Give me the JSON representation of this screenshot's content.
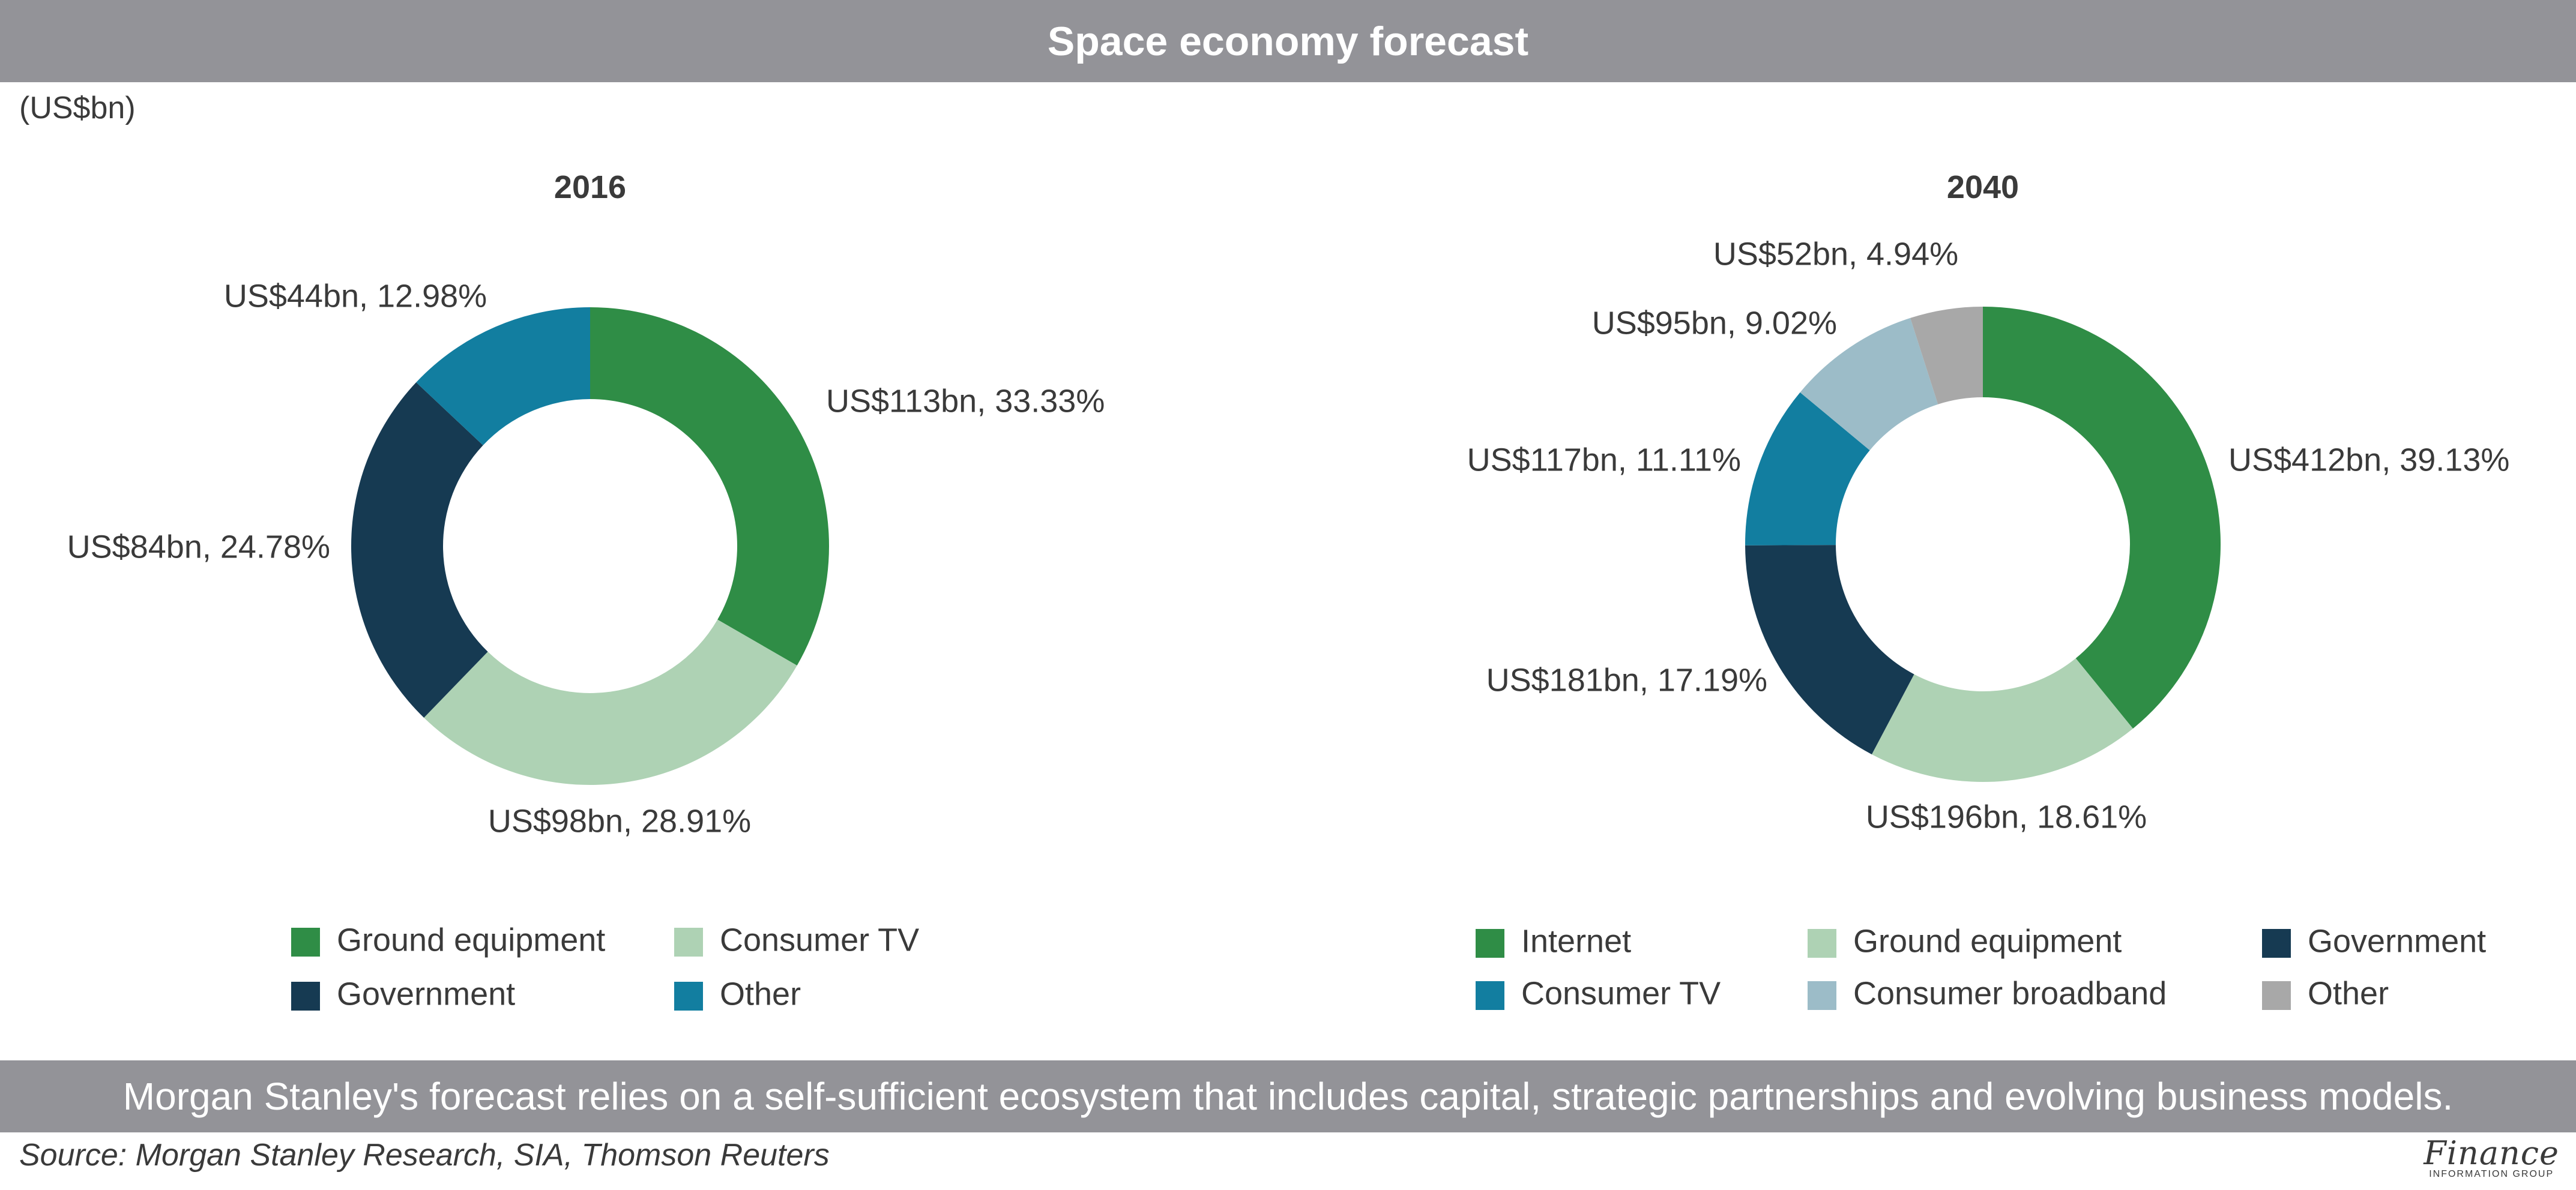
{
  "header": {
    "title": "Space economy forecast"
  },
  "unit_label": "(US$bn)",
  "chart_data": [
    {
      "type": "pie",
      "title": "2016",
      "categories": [
        "Ground equipment",
        "Consumer TV",
        "Government",
        "Other"
      ],
      "values": [
        113,
        98,
        84,
        44
      ],
      "percents": [
        33.33,
        28.91,
        24.78,
        12.98
      ],
      "labels": [
        "US$113bn, 33.33%",
        "US$98bn, 28.91%",
        "US$84bn, 24.78%",
        "US$44bn, 12.98%"
      ],
      "colors": [
        "#2f8d46",
        "#aed2b4",
        "#163a52",
        "#127ea0"
      ],
      "legend": [
        "Ground equipment",
        "Consumer TV",
        "Government",
        "Other"
      ],
      "legend_colors": [
        "#2f8d46",
        "#aed2b4",
        "#163a52",
        "#127ea0"
      ]
    },
    {
      "type": "pie",
      "title": "2040",
      "categories": [
        "Internet",
        "Ground equipment",
        "Government",
        "Consumer TV",
        "Consumer broadband",
        "Other"
      ],
      "values": [
        412,
        196,
        181,
        117,
        95,
        52
      ],
      "percents": [
        39.13,
        18.61,
        17.19,
        11.11,
        9.02,
        4.94
      ],
      "labels": [
        "US$412bn, 39.13%",
        "US$196bn, 18.61%",
        "US$181bn, 17.19%",
        "US$117bn, 11.11%",
        "US$95bn, 9.02%",
        "US$52bn, 4.94%"
      ],
      "colors": [
        "#2f8d46",
        "#aed2b4",
        "#163a52",
        "#127ea0",
        "#9cbcc8",
        "#a8a8a8"
      ],
      "legend": [
        "Internet",
        "Ground equipment",
        "Government",
        "Consumer TV",
        "Consumer broadband",
        "Other"
      ],
      "legend_colors": [
        "#2f8d46",
        "#aed2b4",
        "#163a52",
        "#127ea0",
        "#9cbcc8",
        "#a8a8a8"
      ]
    }
  ],
  "note": "Morgan Stanley's forecast relies on a self-sufficient ecosystem that includes capital, strategic partnerships and evolving business models.",
  "source": "Source: Morgan Stanley Research, SIA, Thomson Reuters",
  "logo": {
    "main": "Finance",
    "sub": "INFORMATION GROUP"
  }
}
